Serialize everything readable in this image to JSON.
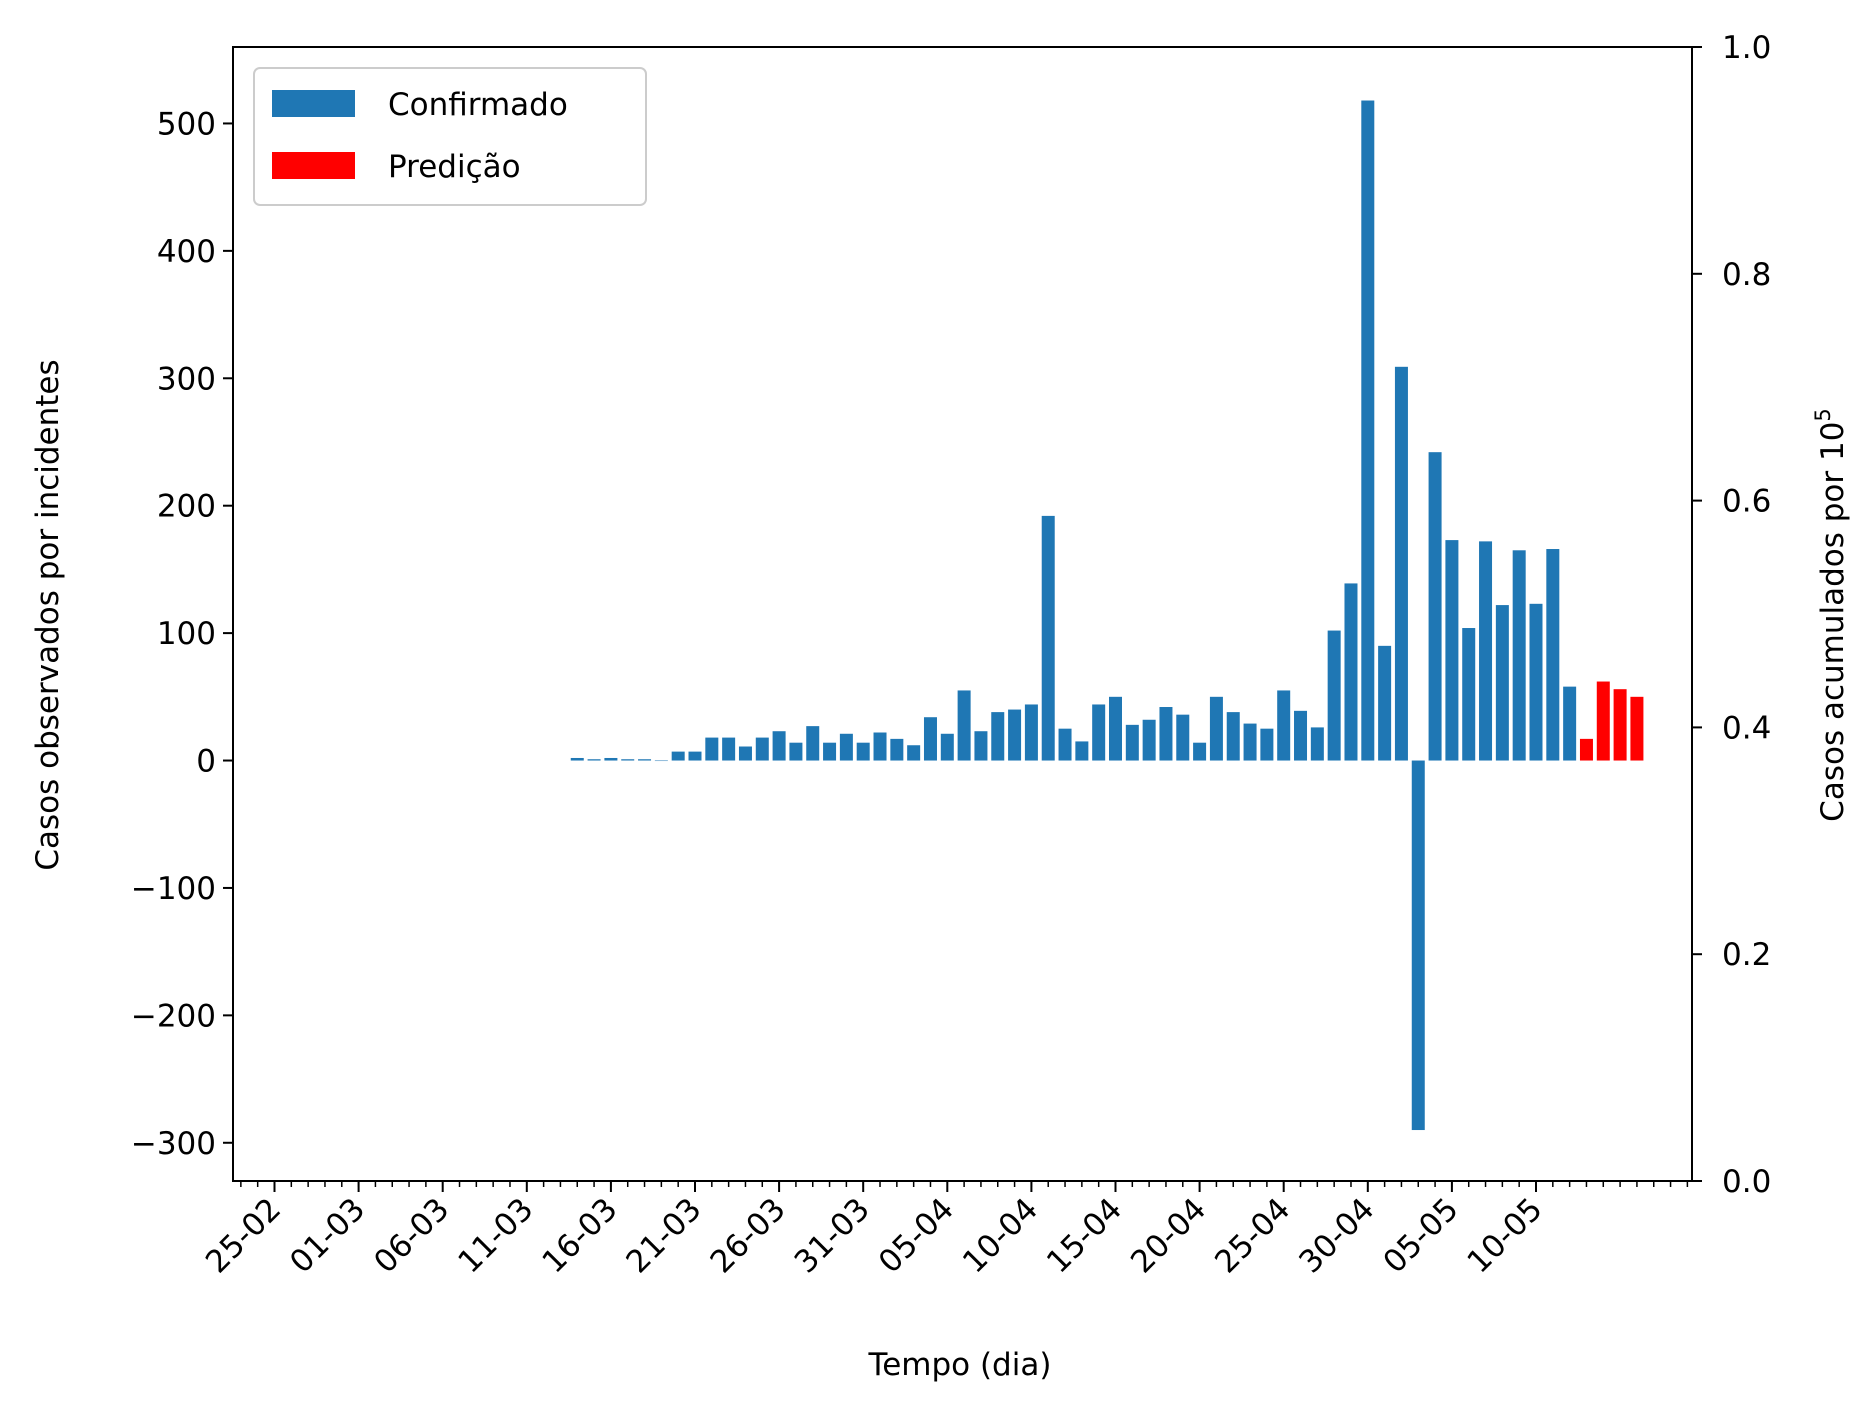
{
  "chart_data": {
    "type": "bar",
    "xlabel": "Tempo (dia)",
    "ylabel_left": "Casos observados por incidentes",
    "ylabel_right_prefix": "Casos acumulados por 10",
    "ylabel_right_sup": "5",
    "ylim_left": [
      -330,
      560
    ],
    "ylim_right": [
      0.0,
      1.0
    ],
    "yticks_left": [
      "500",
      "400",
      "300",
      "200",
      "100",
      "0",
      "−100",
      "−200",
      "−300"
    ],
    "yticks_left_values": [
      500,
      400,
      300,
      200,
      100,
      0,
      -100,
      -200,
      -300
    ],
    "yticks_right": [
      "1.0",
      "0.8",
      "0.6",
      "0.4",
      "0.2",
      "0.0"
    ],
    "yticks_right_values": [
      1.0,
      0.8,
      0.6,
      0.4,
      0.2,
      0.0
    ],
    "xtick_labels": [
      "25-02",
      "01-03",
      "06-03",
      "11-03",
      "16-03",
      "21-03",
      "26-03",
      "31-03",
      "05-04",
      "10-04",
      "15-04",
      "20-04",
      "25-04",
      "30-04",
      "05-05",
      "10-05"
    ],
    "grid": false,
    "legend_position": "upper-left",
    "colors": {
      "confirmado": "#1f77b4",
      "predicao": "#ff0000"
    },
    "series": [
      {
        "name": "Confirmado",
        "color": "#1f77b4",
        "x": [
          "14-03",
          "15-03",
          "16-03",
          "17-03",
          "18-03",
          "19-03",
          "20-03",
          "21-03",
          "22-03",
          "23-03",
          "24-03",
          "25-03",
          "26-03",
          "27-03",
          "28-03",
          "29-03",
          "30-03",
          "31-03",
          "01-04",
          "02-04",
          "03-04",
          "04-04",
          "05-04",
          "06-04",
          "07-04",
          "08-04",
          "09-04",
          "10-04",
          "11-04",
          "12-04",
          "13-04",
          "14-04",
          "15-04",
          "16-04",
          "17-04",
          "18-04",
          "19-04",
          "20-04",
          "21-04",
          "22-04",
          "23-04",
          "24-04",
          "25-04",
          "26-04",
          "27-04",
          "28-04",
          "29-04",
          "30-04",
          "01-05",
          "02-05",
          "03-05",
          "04-05",
          "05-05",
          "06-05",
          "07-05",
          "08-05",
          "09-05",
          "10-05",
          "11-05",
          "12-05"
        ],
        "values": [
          2,
          1,
          2,
          1,
          1,
          0,
          7,
          7,
          18,
          18,
          11,
          18,
          23,
          14,
          27,
          14,
          21,
          14,
          22,
          17,
          12,
          34,
          21,
          55,
          23,
          38,
          40,
          44,
          192,
          25,
          15,
          44,
          50,
          28,
          32,
          42,
          36,
          14,
          50,
          38,
          29,
          25,
          55,
          39,
          26,
          102,
          139,
          518,
          90,
          309,
          -290,
          242,
          173,
          104,
          172,
          122,
          165,
          123,
          166,
          58
        ]
      },
      {
        "name": "Predição",
        "color": "#ff0000",
        "x": [
          "13-05",
          "14-05",
          "15-05",
          "16-05"
        ],
        "values": [
          17,
          62,
          56,
          50
        ]
      }
    ]
  }
}
